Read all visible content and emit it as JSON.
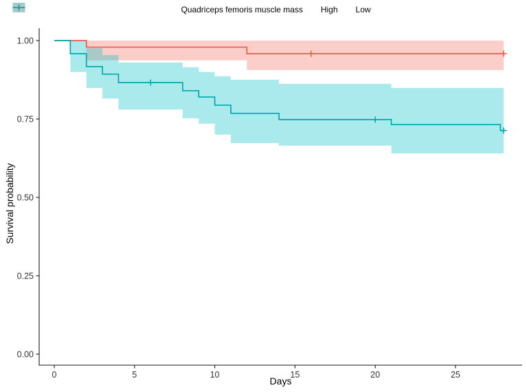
{
  "chart_data": {
    "type": "line",
    "subtype": "kaplan-meier-step-curves-with-confidence-bands",
    "title": "",
    "xlabel": "Days",
    "ylabel": "Survival probability",
    "legend_title": "Quadriceps femoris muscle mass",
    "legend_position": "top",
    "grid": false,
    "xlim": [
      -0.9,
      29.2
    ],
    "ylim": [
      -0.03,
      1.04
    ],
    "xticks": {
      "values": [
        0,
        5,
        10,
        15,
        20,
        25
      ],
      "labels": [
        "0",
        "5",
        "10",
        "15",
        "20",
        "25"
      ]
    },
    "yticks": {
      "values": [
        0.0,
        0.25,
        0.5,
        0.75,
        1.0
      ],
      "labels": [
        "0.00",
        "0.25",
        "0.50",
        "0.75",
        "1.00"
      ]
    },
    "series": [
      {
        "name": "High",
        "color": "#EE5A4C",
        "band_color": "rgba(248,118,109,0.36)",
        "steps": [
          [
            0,
            1.0
          ],
          [
            2,
            0.979
          ],
          [
            12,
            0.958
          ],
          [
            28,
            0.958
          ]
        ],
        "censors": [
          [
            16,
            0.958
          ],
          [
            28,
            0.958
          ]
        ],
        "band": [
          [
            2,
            1.0,
            0.937
          ],
          [
            12,
            1.0,
            0.906
          ],
          [
            28,
            1.0,
            0.906
          ]
        ]
      },
      {
        "name": "Low",
        "color": "#00A9AD",
        "band_color": "rgba(0,191,196,0.33)",
        "steps": [
          [
            0,
            1.0
          ],
          [
            1,
            0.958
          ],
          [
            2,
            0.917
          ],
          [
            3,
            0.893
          ],
          [
            4,
            0.866
          ],
          [
            8,
            0.84
          ],
          [
            9,
            0.82
          ],
          [
            10,
            0.794
          ],
          [
            11,
            0.768
          ],
          [
            14,
            0.748
          ],
          [
            21,
            0.732
          ],
          [
            27.8,
            0.713
          ],
          [
            28,
            0.713
          ]
        ],
        "censors": [
          [
            6,
            0.866
          ],
          [
            20,
            0.748
          ],
          [
            28,
            0.713
          ]
        ],
        "band": [
          [
            1,
            1.0,
            0.9
          ],
          [
            2,
            0.976,
            0.849
          ],
          [
            3,
            0.954,
            0.815
          ],
          [
            4,
            0.93,
            0.78
          ],
          [
            8,
            0.915,
            0.752
          ],
          [
            9,
            0.9,
            0.735
          ],
          [
            10,
            0.886,
            0.7
          ],
          [
            11,
            0.875,
            0.673
          ],
          [
            14,
            0.862,
            0.665
          ],
          [
            21,
            0.849,
            0.64
          ],
          [
            28,
            0.849,
            0.64
          ]
        ]
      }
    ],
    "axis_color": "#1a1a1a",
    "tick_label_color": "#333333"
  }
}
